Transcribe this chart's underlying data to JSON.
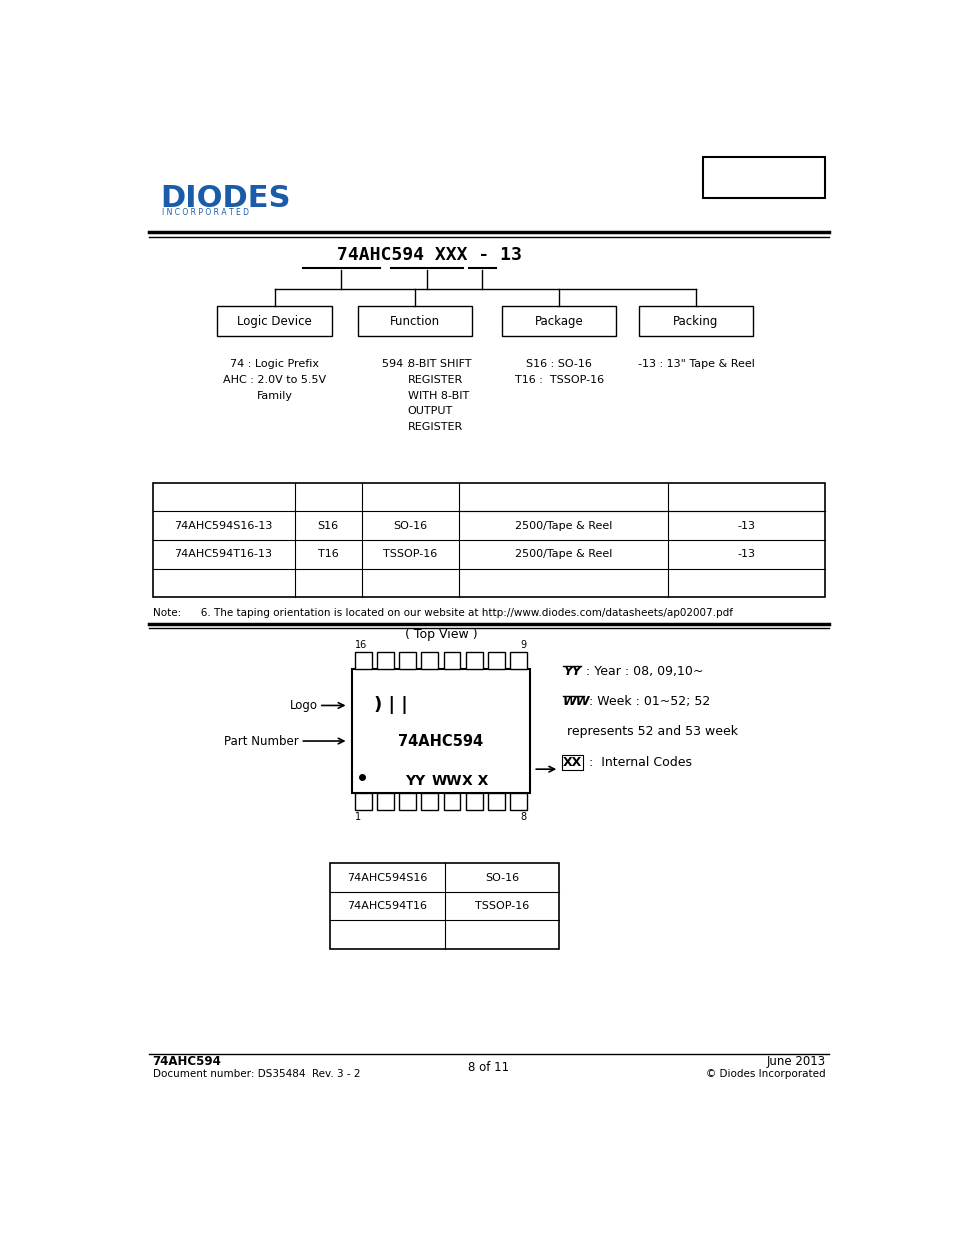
{
  "page_bg": "#ffffff",
  "text_color": "#000000",
  "logo_color": "#1a5ca8",
  "title_ordering": "74AHC594 XXX - 13",
  "table1_rows": [
    [
      "74AHC594S16-13",
      "S16",
      "SO-16",
      "2500/Tape & Reel",
      "-13"
    ],
    [
      "74AHC594T16-13",
      "T16",
      "TSSOP-16",
      "2500/Tape & Reel",
      "-13"
    ]
  ],
  "note_text": "Note:      6. The taping orientation is located on our website at http://www.diodes.com/datasheets/ap02007.pdf",
  "table2_rows": [
    [
      "74AHC594S16",
      "SO-16"
    ],
    [
      "74AHC594T16",
      "TSSOP-16"
    ]
  ],
  "footer_left1": "74AHC594",
  "footer_left2": "Document number: DS35484  Rev. 3 - 2",
  "footer_center": "8 of 11",
  "footer_right1": "June 2013",
  "footer_right2": "© Diodes Incorporated"
}
